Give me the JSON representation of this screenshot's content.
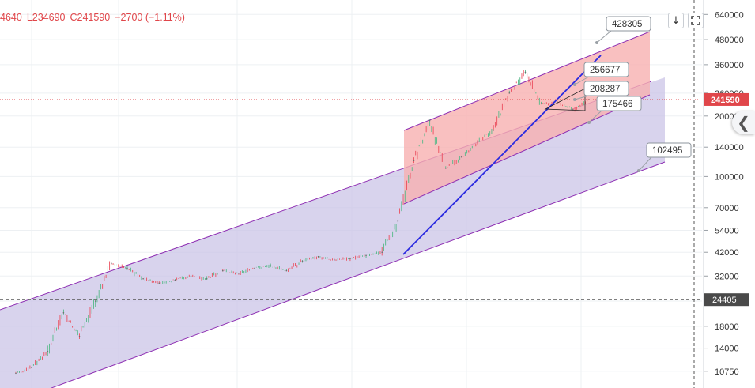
{
  "ohlc": {
    "open_partial": "4640",
    "low": "L234690",
    "close": "C241590",
    "change": "−2700 (−1.11%)"
  },
  "colors": {
    "accent_red": "#e0464a",
    "channel_fill": "#c9c2e6",
    "channel_line": "#8e2fb3",
    "upper_fill": "#f7b0b0",
    "trend_line": "#2a2ae0",
    "crosshair": "#555555"
  },
  "toolbar": {
    "download_icon": "arrow-down-icon",
    "fullscreen_icon": "fullscreen-icon"
  },
  "side_panel": {
    "icon": "chevron-left-icon"
  },
  "chart_data": {
    "type": "candlestick",
    "yscale": "log",
    "ylim": [
      9800,
      690000
    ],
    "y_ticks": [
      "640000",
      "480000",
      "360000",
      "260000",
      "200000",
      "140000",
      "100000",
      "70000",
      "54000",
      "42000",
      "32000",
      "24000",
      "18000",
      "14000",
      "10750"
    ],
    "last_price_label": "241590",
    "crosshair_price_label": "24405",
    "price_labels": [
      "428305",
      "256677",
      "208287",
      "175466",
      "102495"
    ],
    "series": [
      {
        "values": [
          10500,
          11200,
          13500,
          21000,
          16000,
          24000,
          37000,
          35000,
          31000,
          29500,
          30500,
          32000,
          31000,
          34000,
          33000,
          35000,
          36000,
          34000,
          38000,
          40000,
          38500,
          39000,
          40500,
          42000,
          60000,
          120000,
          190000,
          110000,
          125000,
          150000,
          170000,
          260000,
          330000,
          230000,
          235000,
          215000,
          241590
        ]
      }
    ]
  }
}
